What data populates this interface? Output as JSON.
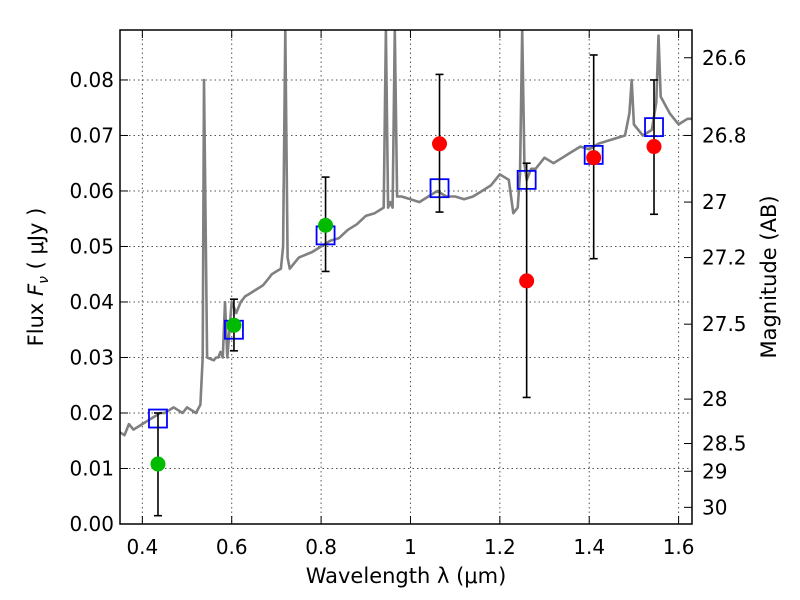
{
  "chart_data": {
    "type": "scatter",
    "xlabel": "Wavelength  λ (μm)",
    "ylabel": "Flux  F_ν  ( μJy )",
    "ylabel_parts": {
      "prefix": "Flux  ",
      "symbol": "F",
      "subscript": "ν",
      "suffix": "  ( μJy )"
    },
    "y2label": "Magnitude (AB)",
    "xlim": [
      0.35,
      1.63
    ],
    "ylim": [
      0.0,
      0.089
    ],
    "grid": true,
    "x_ticks": [
      0.4,
      0.6,
      0.8,
      1.0,
      1.2,
      1.4,
      1.6
    ],
    "x_tick_labels": [
      "0.4",
      "0.6",
      "0.8",
      "1",
      "1.2",
      "1.4",
      "1.6"
    ],
    "y_ticks": [
      0.0,
      0.01,
      0.02,
      0.03,
      0.04,
      0.05,
      0.06,
      0.07,
      0.08
    ],
    "y_tick_labels": [
      "0.00",
      "0.01",
      "0.02",
      "0.03",
      "0.04",
      "0.05",
      "0.06",
      "0.07",
      "0.08"
    ],
    "y2_ticks": [
      {
        "flux": 0.084,
        "label": "26.6"
      },
      {
        "flux": 0.07,
        "label": "26.8"
      },
      {
        "flux": 0.058,
        "label": "27"
      },
      {
        "flux": 0.048,
        "label": "27.2"
      },
      {
        "flux": 0.036,
        "label": "27.5"
      },
      {
        "flux": 0.0225,
        "label": "28"
      },
      {
        "flux": 0.0145,
        "label": "28.5"
      },
      {
        "flux": 0.0095,
        "label": "29"
      },
      {
        "flux": 0.003,
        "label": "30"
      }
    ],
    "series": [
      {
        "kind": "model_spectrum",
        "color": "#808080",
        "x": [
          0.35,
          0.36,
          0.37,
          0.38,
          0.39,
          0.4,
          0.41,
          0.42,
          0.43,
          0.44,
          0.45,
          0.46,
          0.47,
          0.48,
          0.49,
          0.5,
          0.51,
          0.52,
          0.53,
          0.535,
          0.538,
          0.545,
          0.56,
          0.565,
          0.57,
          0.575,
          0.58,
          0.585,
          0.59,
          0.6,
          0.61,
          0.62,
          0.63,
          0.64,
          0.65,
          0.66,
          0.67,
          0.68,
          0.69,
          0.7,
          0.71,
          0.715,
          0.72,
          0.725,
          0.73,
          0.75,
          0.78,
          0.8,
          0.82,
          0.84,
          0.86,
          0.88,
          0.9,
          0.92,
          0.94,
          0.945,
          0.95,
          0.955,
          0.96,
          0.965,
          0.97,
          0.98,
          1.0,
          1.02,
          1.04,
          1.06,
          1.08,
          1.1,
          1.12,
          1.14,
          1.16,
          1.18,
          1.2,
          1.22,
          1.23,
          1.24,
          1.245,
          1.25,
          1.255,
          1.26,
          1.27,
          1.28,
          1.29,
          1.3,
          1.32,
          1.34,
          1.36,
          1.38,
          1.4,
          1.42,
          1.44,
          1.46,
          1.48,
          1.49,
          1.495,
          1.5,
          1.52,
          1.54,
          1.55,
          1.555,
          1.56,
          1.58,
          1.6,
          1.62,
          1.63
        ],
        "y": [
          0.0165,
          0.016,
          0.018,
          0.017,
          0.0175,
          0.018,
          0.0185,
          0.019,
          0.0195,
          0.02,
          0.02,
          0.0205,
          0.021,
          0.0205,
          0.02,
          0.021,
          0.0205,
          0.02,
          0.0215,
          0.03,
          0.08,
          0.03,
          0.0295,
          0.03,
          0.03,
          0.031,
          0.03,
          0.04,
          0.03,
          0.04,
          0.038,
          0.04,
          0.041,
          0.0415,
          0.042,
          0.0425,
          0.043,
          0.044,
          0.045,
          0.0455,
          0.046,
          0.05,
          0.089,
          0.048,
          0.046,
          0.048,
          0.049,
          0.05,
          0.051,
          0.0515,
          0.053,
          0.054,
          0.0555,
          0.056,
          0.057,
          0.089,
          0.057,
          0.058,
          0.057,
          0.089,
          0.059,
          0.059,
          0.0585,
          0.058,
          0.059,
          0.06,
          0.059,
          0.059,
          0.0585,
          0.059,
          0.06,
          0.061,
          0.063,
          0.062,
          0.056,
          0.057,
          0.063,
          0.089,
          0.065,
          0.062,
          0.064,
          0.064,
          0.065,
          0.066,
          0.065,
          0.066,
          0.067,
          0.068,
          0.0675,
          0.0685,
          0.069,
          0.0695,
          0.07,
          0.074,
          0.08,
          0.072,
          0.07,
          0.071,
          0.076,
          0.088,
          0.077,
          0.074,
          0.072,
          0.073,
          0.073
        ]
      },
      {
        "kind": "model_boxes",
        "color": "#0000ff",
        "x": [
          0.435,
          0.605,
          0.81,
          1.065,
          1.26,
          1.41,
          1.545
        ],
        "y": [
          0.019,
          0.035,
          0.052,
          0.0605,
          0.062,
          0.0665,
          0.0715
        ]
      },
      {
        "kind": "observed_green",
        "color": "#00bb00",
        "x": [
          0.435,
          0.605,
          0.81
        ],
        "y": [
          0.0108,
          0.0358,
          0.0538
        ],
        "err_low": [
          0.0015,
          0.0312,
          0.0455
        ],
        "err_high": [
          0.02,
          0.0405,
          0.0625
        ]
      },
      {
        "kind": "observed_red",
        "color": "#ff0000",
        "x": [
          1.065,
          1.26,
          1.41,
          1.545
        ],
        "y": [
          0.0685,
          0.0438,
          0.066,
          0.068
        ],
        "err_low": [
          0.0562,
          0.0228,
          0.0478,
          0.0558
        ],
        "err_high": [
          0.081,
          0.065,
          0.0845,
          0.08
        ]
      }
    ]
  }
}
